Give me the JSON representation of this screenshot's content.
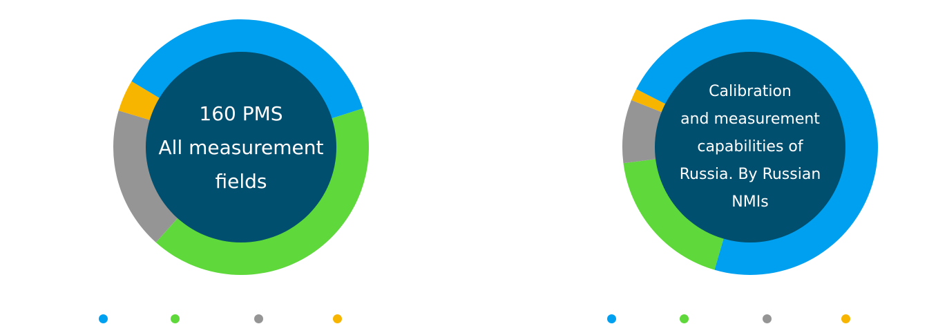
{
  "chart_data": [
    {
      "type": "pie",
      "categories": [
        "",
        "",
        "",
        ""
      ],
      "values": [
        36.5,
        41.5,
        18,
        4
      ],
      "colors": [
        "#00a0f0",
        "#5fd83b",
        "#959595",
        "#f7b500"
      ],
      "donut": true,
      "center_text": "160 PMS\nAll measurement\nfields"
    },
    {
      "type": "pie",
      "categories": [
        "",
        "",
        "",
        ""
      ],
      "values": [
        72,
        18.5,
        8,
        1.5
      ],
      "colors": [
        "#00a0f0",
        "#5fd83b",
        "#959595",
        "#f7b500"
      ],
      "donut": true,
      "center_text": "Calibration\nand measurement\ncapabilities of\nRussia. By Russian\nNMIs"
    }
  ],
  "legend": {
    "colors": [
      "#00a0f0",
      "#5fd83b",
      "#959595",
      "#f7b500"
    ]
  },
  "center_color": "#004f6e"
}
